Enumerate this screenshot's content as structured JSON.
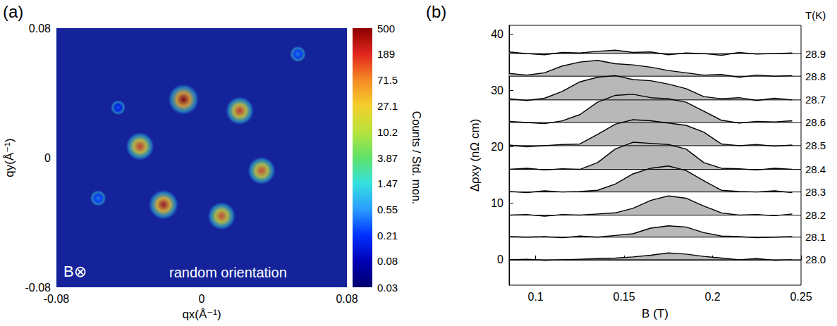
{
  "chart_data": [
    {
      "type": "heatmap",
      "panel_label": "(a)",
      "x_label": "qx(Å⁻¹)",
      "y_label": "qy(Å⁻¹)",
      "xlim": [
        -0.08,
        0.08
      ],
      "ylim": [
        -0.08,
        0.08
      ],
      "xticks": [
        -0.08,
        0,
        0.08
      ],
      "yticks": [
        -0.08,
        0,
        0.08
      ],
      "annotations": [
        "B⊗",
        "random orientation"
      ],
      "spots": [
        {
          "qx": -0.01,
          "qy": 0.036,
          "counts": 450
        },
        {
          "qx": 0.021,
          "qy": 0.029,
          "counts": 150
        },
        {
          "qx": 0.033,
          "qy": -0.008,
          "counts": 120
        },
        {
          "qx": 0.011,
          "qy": -0.036,
          "counts": 120
        },
        {
          "qx": -0.021,
          "qy": -0.029,
          "counts": 300
        },
        {
          "qx": -0.034,
          "qy": 0.007,
          "counts": 150
        },
        {
          "qx": 0.053,
          "qy": 0.064,
          "counts": 0.5
        },
        {
          "qx": -0.057,
          "qy": -0.025,
          "counts": 0.5
        },
        {
          "qx": -0.046,
          "qy": 0.031,
          "counts": 0.3
        }
      ],
      "colorbar": {
        "title": "Counts / Std. mon.",
        "log": true,
        "range": [
          0.03,
          500
        ],
        "ticks": [
          500,
          189,
          71.5,
          27.1,
          10.2,
          3.87,
          1.47,
          0.55,
          0.21,
          0.08,
          0.03
        ]
      }
    },
    {
      "type": "line",
      "panel_label": "(b)",
      "x_label": "B (T)",
      "y_label": "Δρxy (nΩ cm)",
      "label_heading": "T(K)",
      "xlim": [
        0.085,
        0.25
      ],
      "ylim": [
        -4.5,
        41.5
      ],
      "xticks": [
        0.1,
        0.15,
        0.2,
        0.25
      ],
      "yticks": [
        0,
        10,
        20,
        30,
        40
      ],
      "x": [
        0.085,
        0.095,
        0.105,
        0.115,
        0.125,
        0.135,
        0.145,
        0.155,
        0.165,
        0.175,
        0.185,
        0.195,
        0.205,
        0.215,
        0.225,
        0.235,
        0.245
      ],
      "series": [
        {
          "name": "28.9",
          "color": "#000000",
          "baseline": 36.5,
          "values": [
            36.8,
            36.5,
            36.3,
            36.7,
            36.6,
            36.9,
            37.1,
            36.7,
            36.8,
            36.3,
            36.6,
            36.5,
            36.2,
            36.7,
            36.4,
            36.5,
            36.6
          ]
        },
        {
          "name": "28.8",
          "color": "#000000",
          "baseline": 32.5,
          "values": [
            33.0,
            32.7,
            33.1,
            34.3,
            35.0,
            35.3,
            34.7,
            34.5,
            34.1,
            33.5,
            33.1,
            32.7,
            32.8,
            32.3,
            32.7,
            32.5,
            32.6
          ]
        },
        {
          "name": "28.7",
          "color": "#000000",
          "baseline": 28.3,
          "values": [
            28.5,
            28.2,
            28.6,
            29.8,
            31.5,
            32.3,
            32.6,
            31.9,
            31.7,
            31.1,
            30.3,
            28.9,
            28.5,
            28.7,
            28.2,
            28.6,
            28.3
          ]
        },
        {
          "name": "28.6",
          "color": "#000000",
          "baseline": 24.3,
          "values": [
            24.5,
            24.3,
            24.1,
            24.6,
            25.7,
            27.9,
            29.1,
            29.3,
            28.7,
            28.5,
            27.9,
            26.3,
            24.7,
            24.2,
            24.5,
            24.4,
            24.6
          ]
        },
        {
          "name": "28.5",
          "color": "#000000",
          "baseline": 20.2,
          "values": [
            20.3,
            20.0,
            20.2,
            20.4,
            20.5,
            22.2,
            24.0,
            24.8,
            24.6,
            24.2,
            23.8,
            22.6,
            20.5,
            20.2,
            20.4,
            20.1,
            20.3
          ]
        },
        {
          "name": "28.4",
          "color": "#000000",
          "baseline": 16.0,
          "values": [
            16.0,
            16.2,
            15.9,
            16.1,
            16.0,
            17.2,
            19.6,
            20.8,
            20.6,
            20.4,
            19.6,
            17.2,
            16.2,
            16.1,
            15.9,
            16.2,
            16.0
          ]
        },
        {
          "name": "28.3",
          "color": "#000000",
          "baseline": 12.0,
          "values": [
            12.1,
            11.9,
            12.2,
            12.0,
            12.1,
            12.3,
            13.4,
            15.2,
            16.2,
            16.6,
            15.8,
            14.0,
            12.3,
            12.1,
            12.0,
            12.2,
            11.9
          ]
        },
        {
          "name": "28.2",
          "color": "#000000",
          "baseline": 7.9,
          "values": [
            7.9,
            8.0,
            7.7,
            8.0,
            7.9,
            8.1,
            8.3,
            9.1,
            10.5,
            11.3,
            10.9,
            9.5,
            8.3,
            7.9,
            8.0,
            7.8,
            8.1
          ]
        },
        {
          "name": "28.1",
          "color": "#000000",
          "baseline": 4.0,
          "values": [
            4.1,
            4.0,
            4.1,
            3.9,
            4.2,
            4.0,
            4.3,
            4.6,
            5.6,
            6.0,
            5.8,
            4.8,
            4.2,
            4.1,
            3.9,
            4.0,
            4.1
          ]
        },
        {
          "name": "28.0",
          "color": "#000000",
          "baseline": 0,
          "values": [
            0,
            0.1,
            -0.1,
            0,
            0.1,
            0.2,
            0.3,
            0.5,
            0.8,
            1.2,
            1.0,
            0.6,
            0.3,
            0,
            0.2,
            -0.1,
            0
          ]
        }
      ]
    }
  ]
}
